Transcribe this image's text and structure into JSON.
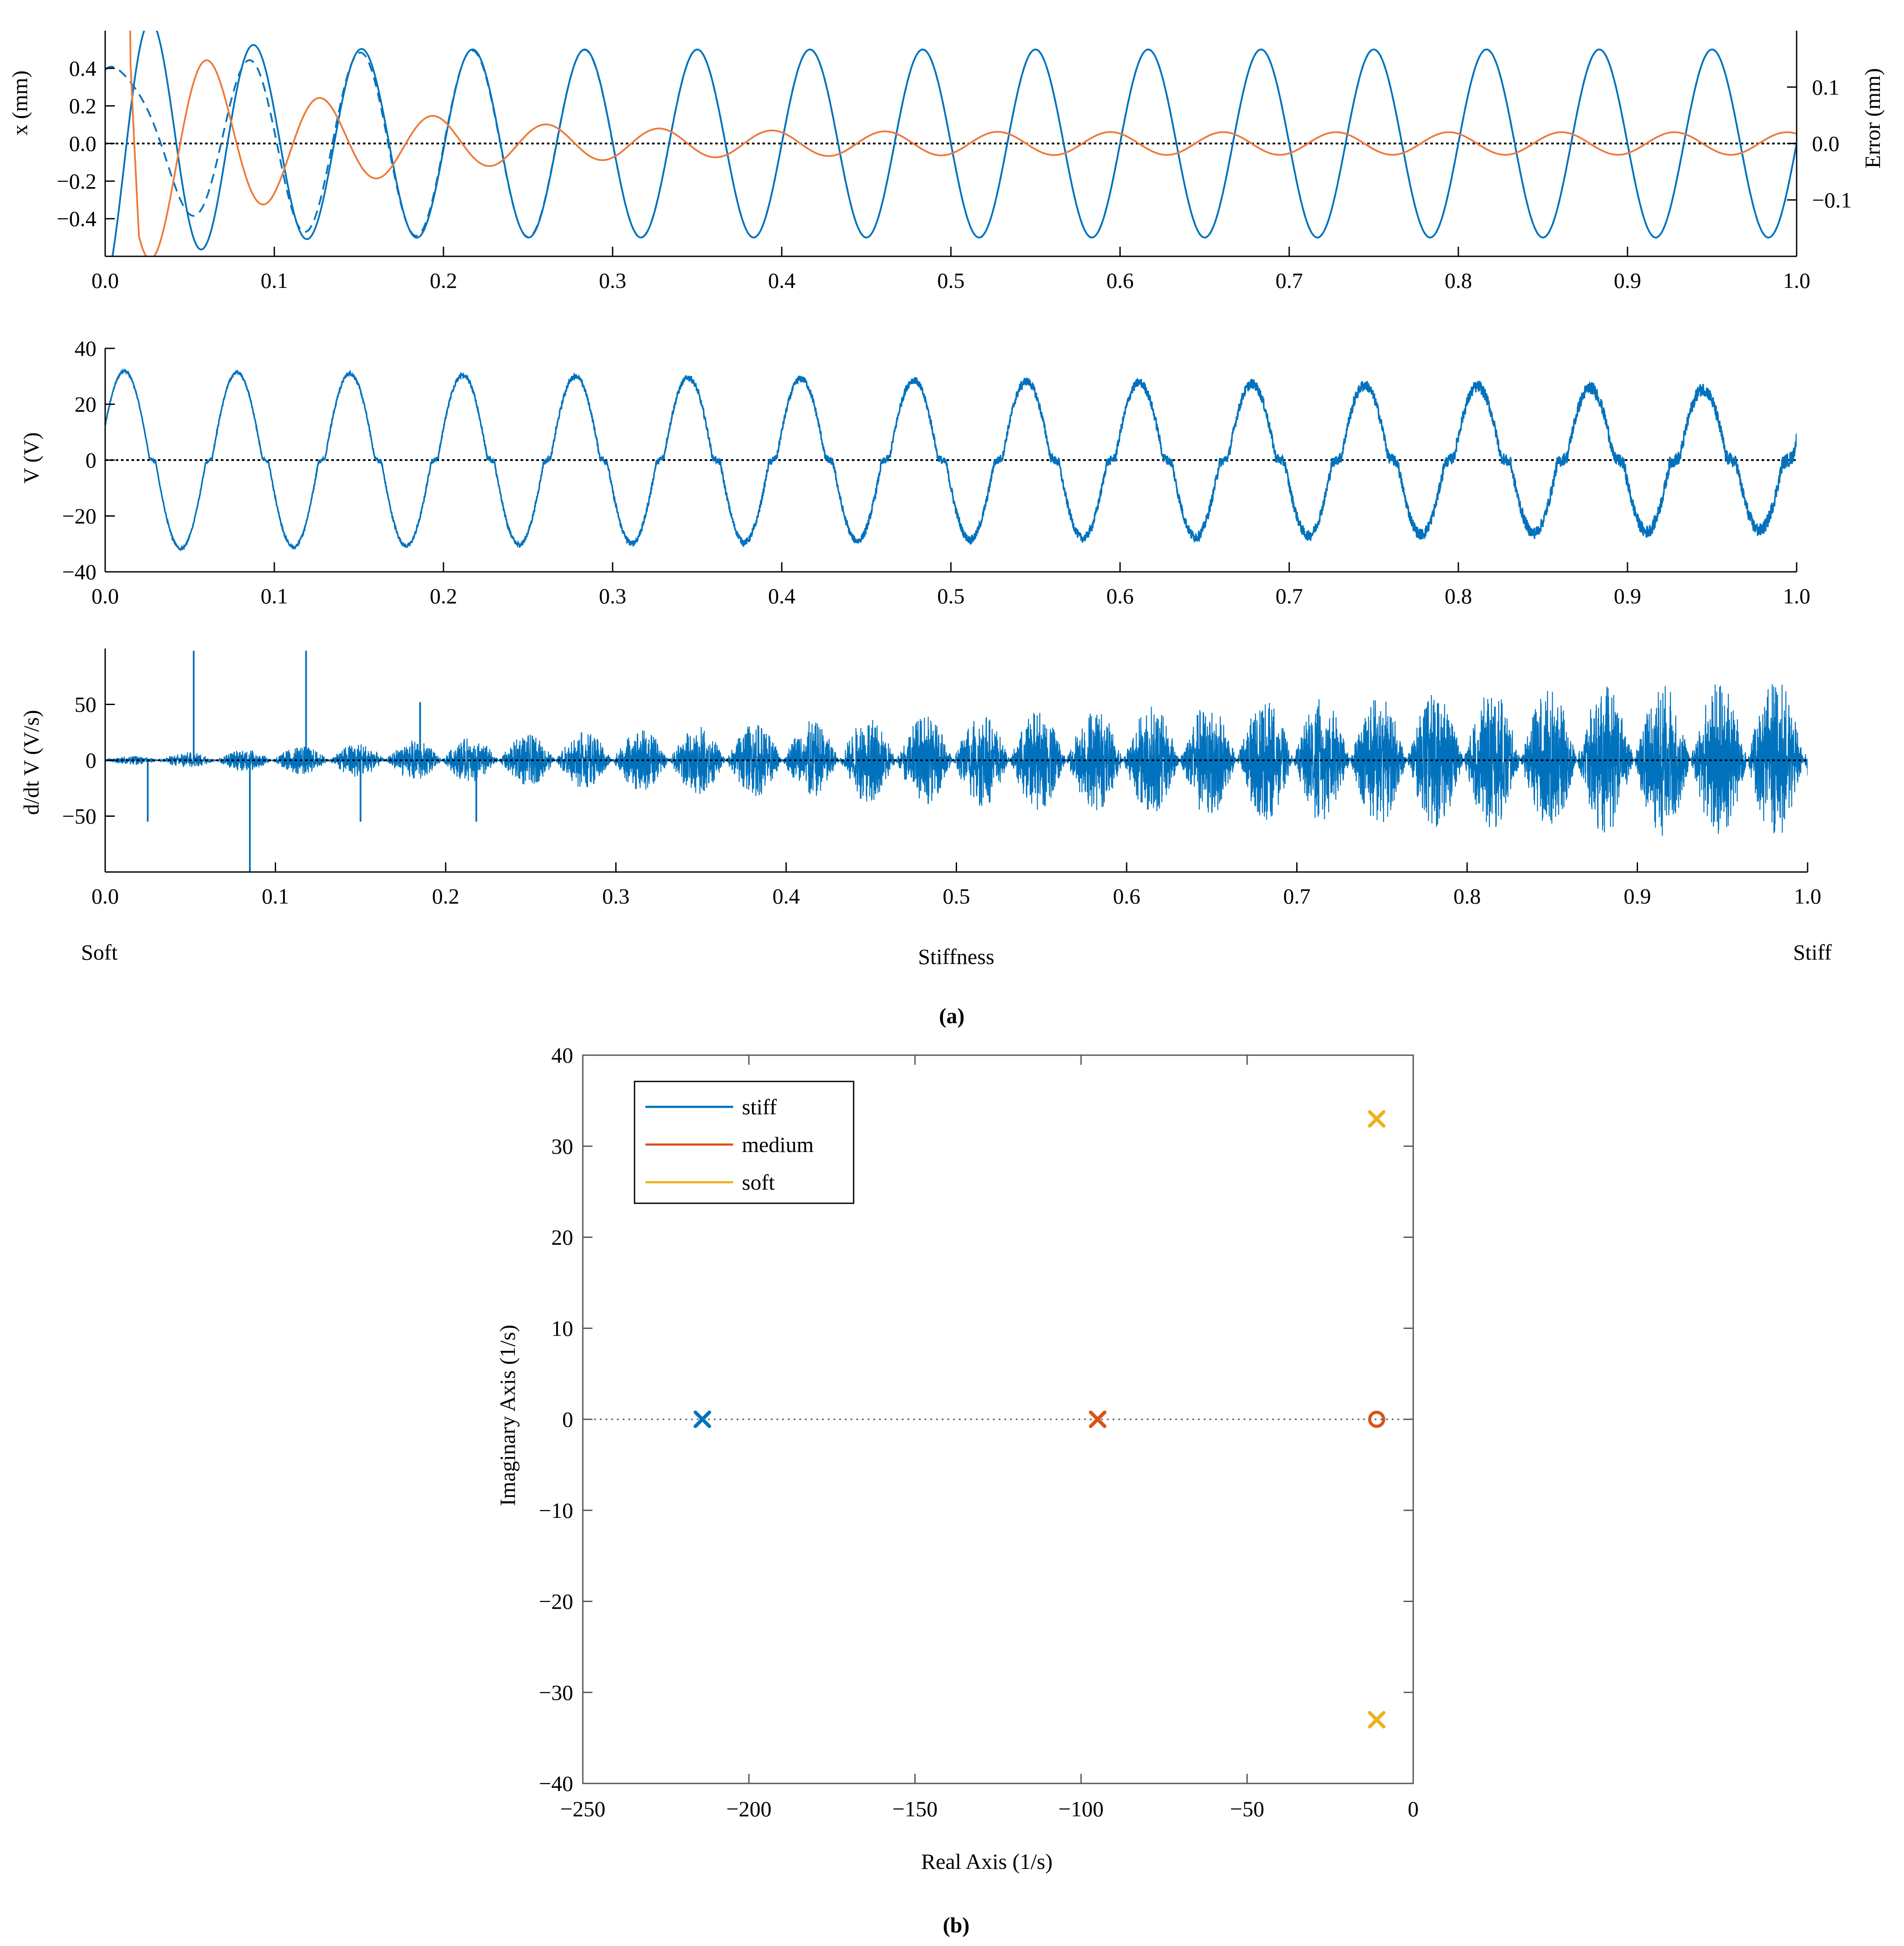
{
  "colors": {
    "blue": "#0072bd",
    "orange": "#d95319",
    "lightorange": "#ec7a3a",
    "yellow": "#edb120",
    "axis": "#000000",
    "gray": "#555555"
  },
  "figure": {
    "panel_a_label": "(a)",
    "panel_b_label": "(b)",
    "soft_label": "Soft",
    "stiffness_label": "Stiffness",
    "stiff_label": "Stiff"
  },
  "chart_data": [
    {
      "id": "displacement",
      "type": "line",
      "title": "",
      "xlabel": "",
      "ylabel": "x (mm)",
      "y2label": "Error (mm)",
      "xlim": [
        0,
        1
      ],
      "ylim": [
        -0.6,
        0.6
      ],
      "y2lim": [
        -0.2,
        0.2
      ],
      "xticks": [
        0,
        0.1,
        0.2,
        0.3,
        0.4,
        0.5,
        0.6,
        0.7,
        0.8,
        0.9,
        1.0
      ],
      "xtick_labels": [
        "0.0",
        "0.1",
        "0.2",
        "0.3",
        "0.4",
        "0.5",
        "0.6",
        "0.7",
        "0.8",
        "0.9",
        "1.0"
      ],
      "yticks": [
        -0.4,
        -0.2,
        0,
        0.2,
        0.4
      ],
      "ytick_labels": [
        "−0.4",
        "−0.2",
        "0.0",
        "0.2",
        "0.4"
      ],
      "y2ticks": [
        -0.1,
        0,
        0.1
      ],
      "y2tick_labels": [
        "−0.1",
        "0.0",
        "0.1"
      ],
      "frequency_hz": 15,
      "amplitude_mm": 0.5,
      "error_peaks_mm": [
        0.18,
        -0.11,
        0.1,
        -0.07,
        0.07,
        -0.05,
        0.045,
        -0.035,
        0.03,
        -0.025,
        0.02,
        -0.015,
        0.015
      ],
      "series": [
        {
          "role": "measured",
          "style": "solid",
          "color": "blue"
        },
        {
          "role": "reference",
          "style": "dashed",
          "color": "blue"
        },
        {
          "role": "error",
          "style": "solid",
          "color": "orange",
          "axis": "right"
        }
      ]
    },
    {
      "id": "voltage",
      "type": "line",
      "title": "",
      "xlabel": "",
      "ylabel": "V (V)",
      "xlim": [
        0,
        1
      ],
      "ylim": [
        -40,
        40
      ],
      "xticks": [
        0,
        0.1,
        0.2,
        0.3,
        0.4,
        0.5,
        0.6,
        0.7,
        0.8,
        0.9,
        1.0
      ],
      "xtick_labels": [
        "0.0",
        "0.1",
        "0.2",
        "0.3",
        "0.4",
        "0.5",
        "0.6",
        "0.7",
        "0.8",
        "0.9",
        "1.0"
      ],
      "yticks": [
        -40,
        -20,
        0,
        20,
        40
      ],
      "ytick_labels": [
        "−40",
        "−20",
        "0",
        "20",
        "40"
      ],
      "amplitude_start_V": 32,
      "amplitude_end_V": 25
    },
    {
      "id": "voltage-derivative",
      "type": "line",
      "title": "",
      "xlabel": "",
      "ylabel": "d/dt V (V/s)",
      "xlim": [
        0,
        1
      ],
      "ylim": [
        -100,
        100
      ],
      "xticks": [
        0,
        0.1,
        0.2,
        0.3,
        0.4,
        0.5,
        0.6,
        0.7,
        0.8,
        0.9,
        1.0
      ],
      "xtick_labels": [
        "0.0",
        "0.1",
        "0.2",
        "0.3",
        "0.4",
        "0.5",
        "0.6",
        "0.7",
        "0.8",
        "0.9",
        "1.0"
      ],
      "yticks": [
        -50,
        0,
        50
      ],
      "ytick_labels": [
        "−50",
        "0",
        "50"
      ],
      "envelope_start": 2,
      "envelope_end": 60,
      "spikes": [
        {
          "x": 0.025,
          "y": -55
        },
        {
          "x": 0.052,
          "y": 98
        },
        {
          "x": 0.085,
          "y": -100
        },
        {
          "x": 0.118,
          "y": 98
        },
        {
          "x": 0.15,
          "y": -55
        },
        {
          "x": 0.185,
          "y": 52
        },
        {
          "x": 0.218,
          "y": -55
        }
      ]
    },
    {
      "id": "pole-zero",
      "type": "scatter",
      "title": "",
      "xlabel": "Real Axis (1/s)",
      "ylabel": "Imaginary Axis (1/s)",
      "xlim": [
        -250,
        0
      ],
      "ylim": [
        -40,
        40
      ],
      "xticks": [
        -250,
        -200,
        -150,
        -100,
        -50,
        0
      ],
      "xtick_labels": [
        "−250",
        "−200",
        "−150",
        "−100",
        "−50",
        "0"
      ],
      "yticks": [
        -40,
        -30,
        -20,
        -10,
        0,
        10,
        20,
        30,
        40
      ],
      "ytick_labels": [
        "−40",
        "−30",
        "−20",
        "−10",
        "0",
        "10",
        "20",
        "30",
        "40"
      ],
      "legend": {
        "position": "top-left"
      },
      "series": [
        {
          "name": "stiff",
          "color": "blue",
          "poles": [
            [
              -214,
              0
            ]
          ],
          "zeros": [
            [
              -11,
              0
            ]
          ]
        },
        {
          "name": "medium",
          "color": "orange",
          "poles": [
            [
              -95,
              0
            ]
          ],
          "zeros": [
            [
              -11,
              0
            ]
          ]
        },
        {
          "name": "soft",
          "color": "yellow",
          "poles": [
            [
              -11,
              33
            ],
            [
              -11,
              -33
            ]
          ],
          "zeros": []
        }
      ]
    }
  ]
}
